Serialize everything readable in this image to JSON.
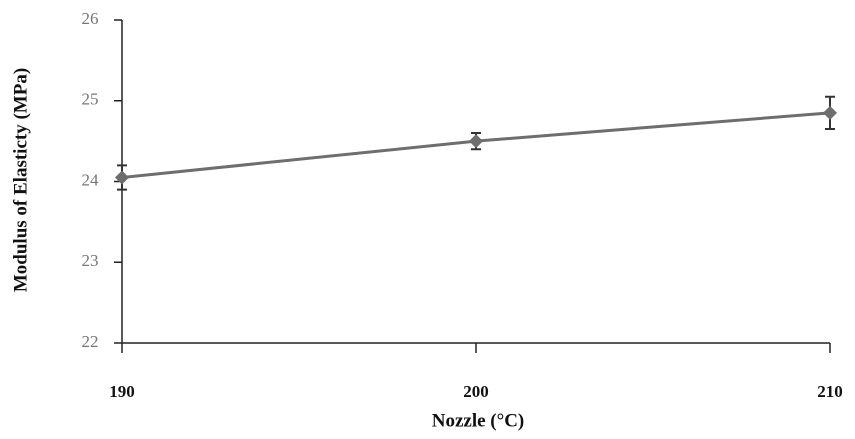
{
  "chart_data": {
    "type": "line",
    "x_label": "Nozzle (°C)",
    "y_label": "Modulus of Elasticty (MPa)",
    "x": [
      190,
      200,
      210
    ],
    "values": [
      24.05,
      24.5,
      24.85
    ],
    "errors": [
      0.15,
      0.1,
      0.2
    ],
    "color": "#6e6e6e",
    "xlim": [
      190,
      210
    ],
    "xticks": [
      190,
      200,
      210
    ],
    "ylim": [
      22,
      26
    ],
    "yticks": [
      22,
      23,
      24,
      25,
      26
    ]
  }
}
